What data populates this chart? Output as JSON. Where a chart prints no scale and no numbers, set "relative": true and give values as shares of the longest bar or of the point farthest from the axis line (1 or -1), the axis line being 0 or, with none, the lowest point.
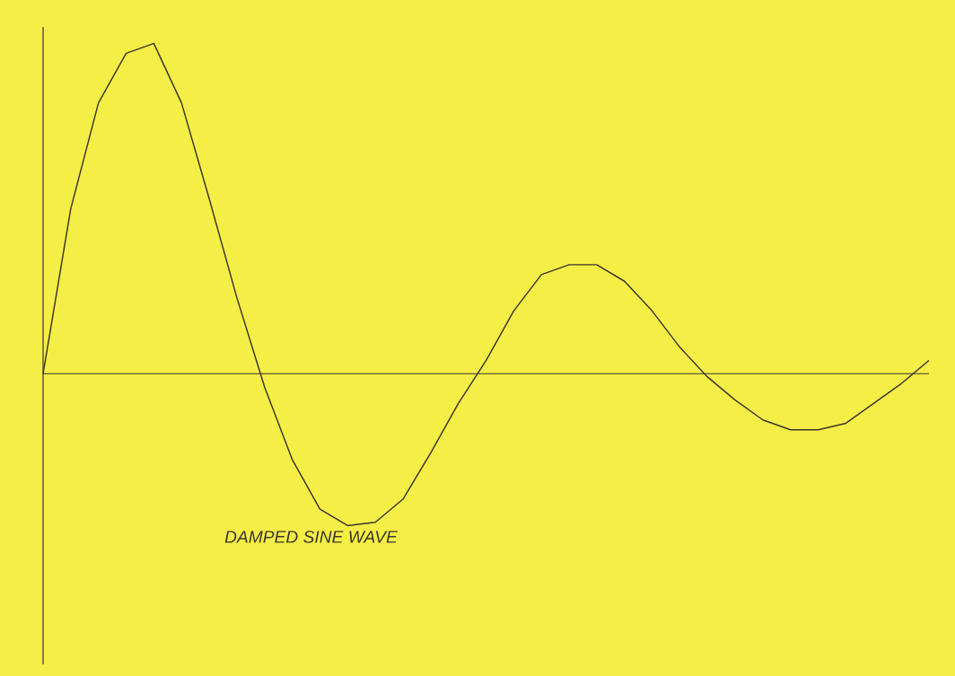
{
  "chart_data": {
    "type": "line",
    "relative": true,
    "color": "#3a3628",
    "categories": [
      null,
      null,
      null,
      null,
      null,
      null,
      null,
      null,
      null,
      null,
      null,
      null,
      null,
      null,
      null,
      null,
      null,
      null,
      null,
      null,
      null,
      null,
      null,
      null,
      null,
      null,
      null,
      null,
      null,
      null,
      null,
      null,
      null
    ],
    "values": [
      0,
      0.5,
      0.82,
      0.97,
      1.0,
      0.82,
      0.53,
      0.23,
      -0.04,
      -0.26,
      -0.41,
      -0.46,
      -0.45,
      -0.38,
      -0.24,
      -0.09,
      0.04,
      0.19,
      0.3,
      0.33,
      0.33,
      0.28,
      0.19,
      0.08,
      -0.01,
      -0.08,
      -0.14,
      -0.17,
      -0.17,
      -0.15,
      -0.09,
      -0.03,
      0.04
    ],
    "annotations": [
      "DAMPED SINE WAVE"
    ]
  }
}
